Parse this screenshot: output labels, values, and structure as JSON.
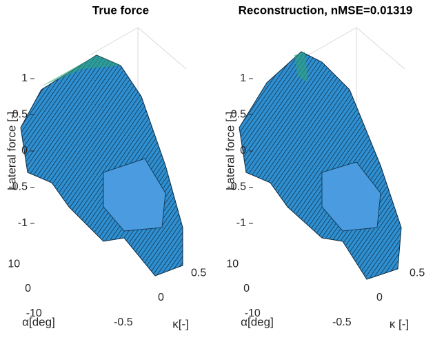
{
  "chart_data": [
    {
      "type": "surface",
      "title": "True force",
      "zlabel": "Lateral force [-]",
      "xlabel": "α[deg]",
      "ylabel": "κ[-]",
      "xlim": [
        -12,
        12
      ],
      "xticks": [
        -10,
        0,
        10
      ],
      "ylim": [
        -0.7,
        0.7
      ],
      "yticks": [
        -0.5,
        0,
        0.5
      ],
      "zlim": [
        -1.1,
        1.1
      ],
      "zticks": [
        -1,
        -0.5,
        0,
        0.5,
        1
      ]
    },
    {
      "type": "surface",
      "title": "Reconstruction,  nMSE=0.01319",
      "zlabel": "Lateral force [-]",
      "xlabel": "α[deg]",
      "ylabel": "κ [-]",
      "xlim": [
        -12,
        12
      ],
      "xticks": [
        -10,
        0,
        10
      ],
      "ylim": [
        -0.7,
        0.7
      ],
      "yticks": [
        -0.5,
        0,
        0.5
      ],
      "zlim": [
        -1.1,
        1.1
      ],
      "zticks": [
        -1,
        -0.5,
        0,
        0.5,
        1
      ]
    }
  ]
}
